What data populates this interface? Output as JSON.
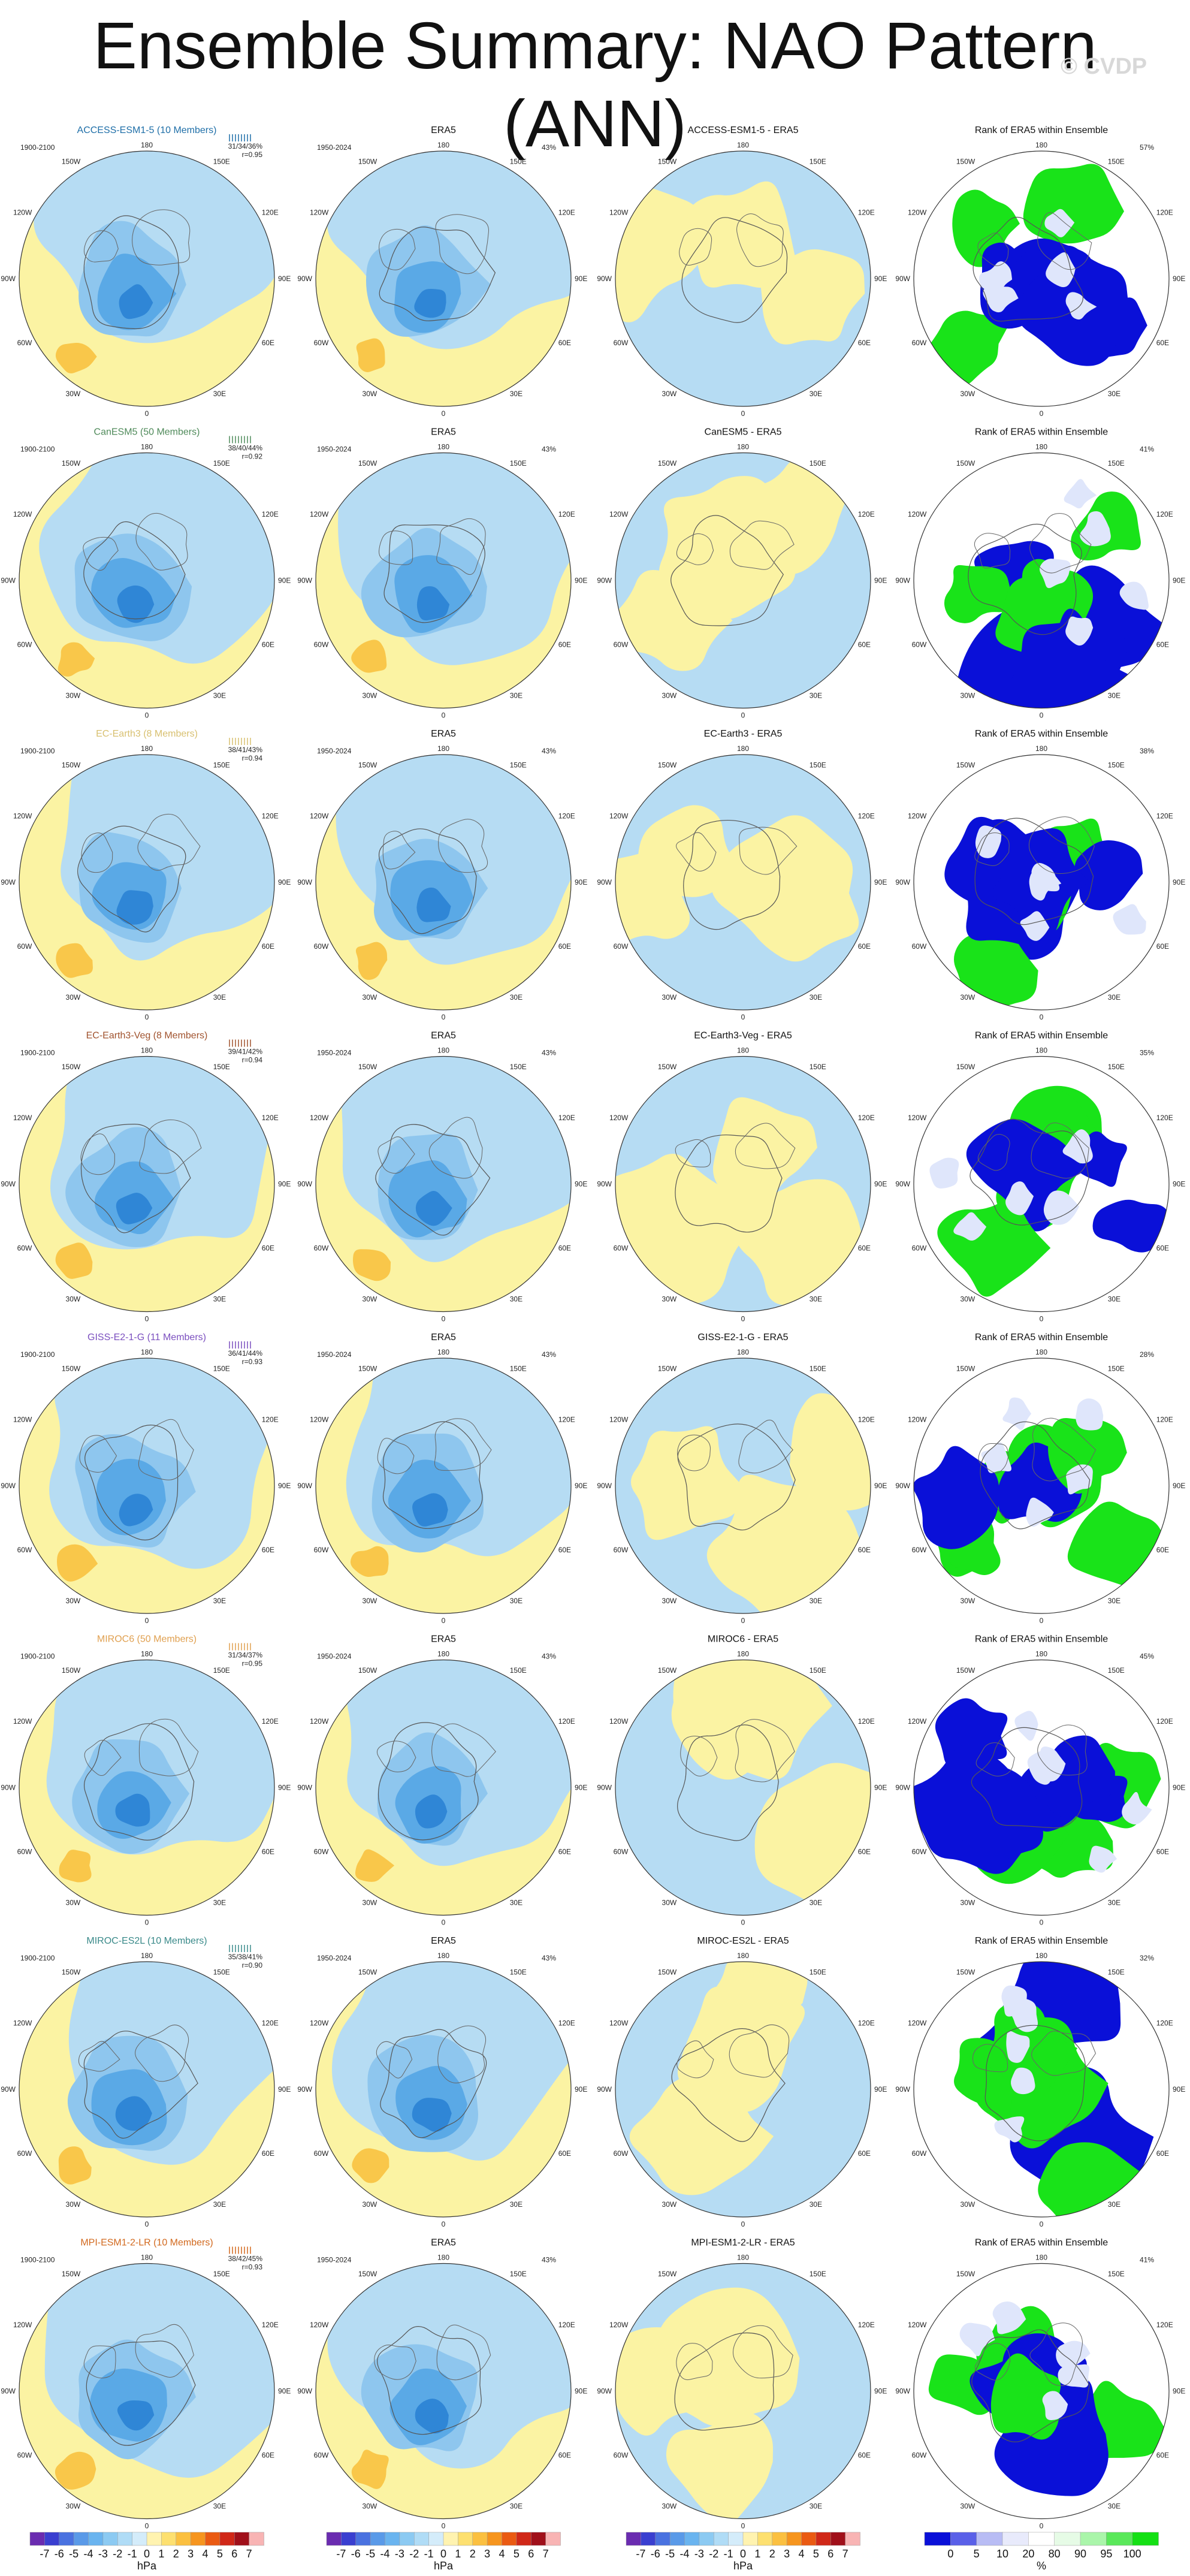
{
  "title": "Ensemble Summary: NAO Pattern (ANN)",
  "watermark": "© CVDP",
  "columns": [
    {
      "key": "model"
    },
    {
      "key": "obs",
      "title": "ERA5",
      "years": "1950-2024",
      "pct": "43%"
    },
    {
      "key": "diff"
    },
    {
      "key": "rank",
      "title": "Rank of ERA5 within Ensemble"
    }
  ],
  "rows": [
    {
      "model": "ACCESS-ESM1-5 (10 Members)",
      "color": "#1f6fa8",
      "years": "1900-2100",
      "pct_line": "31/34/36%",
      "r_line": "r=0.95",
      "diff": "ACCESS-ESM1-5 - ERA5",
      "rank_pct": "57%"
    },
    {
      "model": "CanESM5 (50 Members)",
      "color": "#4f8a5a",
      "years": "1900-2100",
      "pct_line": "38/40/44%",
      "r_line": "r=0.92",
      "diff": "CanESM5 - ERA5",
      "rank_pct": "41%"
    },
    {
      "model": "EC-Earth3 (8 Members)",
      "color": "#d8c070",
      "years": "1900-2100",
      "pct_line": "38/41/43%",
      "r_line": "r=0.94",
      "diff": "EC-Earth3 - ERA5",
      "rank_pct": "38%"
    },
    {
      "model": "EC-Earth3-Veg (8 Members)",
      "color": "#a0522d",
      "years": "1900-2100",
      "pct_line": "39/41/42%",
      "r_line": "r=0.94",
      "diff": "EC-Earth3-Veg - ERA5",
      "rank_pct": "35%"
    },
    {
      "model": "GISS-E2-1-G (11 Members)",
      "color": "#7b4fbf",
      "years": "1900-2100",
      "pct_line": "36/41/44%",
      "r_line": "r=0.93",
      "diff": "GISS-E2-1-G - ERA5",
      "rank_pct": "28%"
    },
    {
      "model": "MIROC6 (50 Members)",
      "color": "#e0a050",
      "years": "1900-2100",
      "pct_line": "31/34/37%",
      "r_line": "r=0.95",
      "diff": "MIROC6 - ERA5",
      "rank_pct": "45%"
    },
    {
      "model": "MIROC-ES2L (10 Members)",
      "color": "#3a8a8a",
      "years": "1900-2100",
      "pct_line": "35/38/41%",
      "r_line": "r=0.90",
      "diff": "MIROC-ES2L - ERA5",
      "rank_pct": "32%"
    },
    {
      "model": "MPI-ESM1-2-LR (10 Members)",
      "color": "#d2691e",
      "years": "1900-2100",
      "pct_line": "38/42/45%",
      "r_line": "r=0.93",
      "diff": "MPI-ESM1-2-LR - ERA5",
      "rank_pct": "41%"
    }
  ],
  "map_labels": {
    "top": "180",
    "bottom": "0",
    "left": "90W",
    "right": "90E",
    "tl1": "150W",
    "tl2": "120W",
    "tr1": "150E",
    "tr2": "120E",
    "bl1": "60W",
    "bl2": "30W",
    "br1": "60E",
    "br2": "30E"
  },
  "colorbars": [
    {
      "labels": [
        "-7",
        "-6",
        "-5",
        "-4",
        "-3",
        "-2",
        "-1",
        "0",
        "1",
        "2",
        "3",
        "4",
        "5",
        "6",
        "7"
      ],
      "unit": "hPa",
      "colors": [
        "#6a2cb0",
        "#3a3fd0",
        "#4a72e0",
        "#5a9ae8",
        "#6ab4ef",
        "#8ccaf2",
        "#b0dcf6",
        "#d4ecfa",
        "#fff3b0",
        "#fde070",
        "#fbc040",
        "#f6951e",
        "#ea5a12",
        "#d02818",
        "#a0101a",
        "#f8b4b4"
      ]
    },
    {
      "labels": [
        "-7",
        "-6",
        "-5",
        "-4",
        "-3",
        "-2",
        "-1",
        "0",
        "1",
        "2",
        "3",
        "4",
        "5",
        "6",
        "7"
      ],
      "unit": "hPa",
      "colors": [
        "#6a2cb0",
        "#3a3fd0",
        "#4a72e0",
        "#5a9ae8",
        "#6ab4ef",
        "#8ccaf2",
        "#b0dcf6",
        "#d4ecfa",
        "#fff3b0",
        "#fde070",
        "#fbc040",
        "#f6951e",
        "#ea5a12",
        "#d02818",
        "#a0101a",
        "#f8b4b4"
      ]
    },
    {
      "labels": [
        "-7",
        "-6",
        "-5",
        "-4",
        "-3",
        "-2",
        "-1",
        "0",
        "1",
        "2",
        "3",
        "4",
        "5",
        "6",
        "7"
      ],
      "unit": "hPa",
      "colors": [
        "#6a2cb0",
        "#3a3fd0",
        "#4a72e0",
        "#5a9ae8",
        "#6ab4ef",
        "#8ccaf2",
        "#b0dcf6",
        "#d4ecfa",
        "#fff3b0",
        "#fde070",
        "#fbc040",
        "#f6951e",
        "#ea5a12",
        "#d02818",
        "#a0101a",
        "#f8b4b4"
      ]
    },
    {
      "labels": [
        "0",
        "5",
        "10",
        "20",
        "80",
        "90",
        "95",
        "100"
      ],
      "unit": "%",
      "colors": [
        "#0a10d8",
        "#5a60e8",
        "#b8bcf4",
        "#e8eafb",
        "#ffffff",
        "#e6fbe6",
        "#aaf5aa",
        "#5ae85a",
        "#14e014"
      ]
    }
  ],
  "palette": {
    "yellow": "#fbf3a3",
    "lightblue": "#b6dcf3",
    "blue2": "#8ec6ee",
    "blue3": "#5aa9e6",
    "blue4": "#2f86d6",
    "orange": "#f9c74a",
    "rank_blue": "#0a10d8",
    "rank_green": "#19e319",
    "rank_pale": "#dfe6fb"
  }
}
